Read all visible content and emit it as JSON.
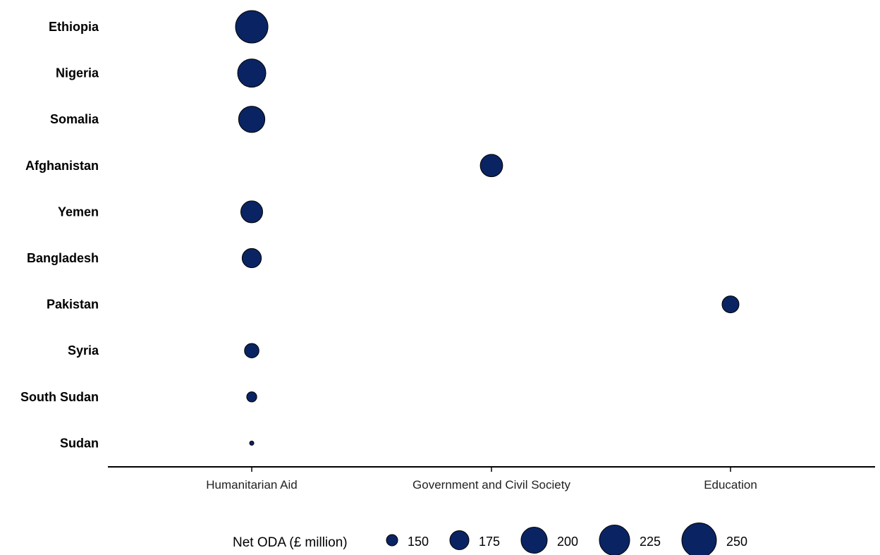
{
  "chart_data": {
    "type": "scatter",
    "title": "",
    "xlabel": "",
    "ylabel": "",
    "categories_x": [
      "Humanitarian Aid",
      "Government and Civil Society",
      "Education"
    ],
    "categories_y": [
      "Ethiopia",
      "Nigeria",
      "Somalia",
      "Afghanistan",
      "Yemen",
      "Bangladesh",
      "Pakistan",
      "Syria",
      "South Sudan",
      "Sudan"
    ],
    "points": [
      {
        "country": "Ethiopia",
        "sector": "Humanitarian Aid",
        "value": 260
      },
      {
        "country": "Nigeria",
        "sector": "Humanitarian Aid",
        "value": 236
      },
      {
        "country": "Somalia",
        "sector": "Humanitarian Aid",
        "value": 225
      },
      {
        "country": "Afghanistan",
        "sector": "Government and Civil Society",
        "value": 203
      },
      {
        "country": "Yemen",
        "sector": "Humanitarian Aid",
        "value": 200
      },
      {
        "country": "Bangladesh",
        "sector": "Humanitarian Aid",
        "value": 185
      },
      {
        "country": "Pakistan",
        "sector": "Education",
        "value": 172
      },
      {
        "country": "Syria",
        "sector": "Humanitarian Aid",
        "value": 158
      },
      {
        "country": "South Sudan",
        "sector": "Humanitarian Aid",
        "value": 133
      },
      {
        "country": "Sudan",
        "sector": "Humanitarian Aid",
        "value": 100
      }
    ],
    "size_legend": {
      "title": "Net ODA (£ million)",
      "values": [
        150,
        175,
        200,
        225,
        250
      ],
      "labels": [
        "150",
        "175",
        "200",
        "225",
        "250"
      ],
      "placement": "bottom"
    },
    "grid": false,
    "colors": {
      "point_fill": "#0a2463",
      "point_stroke": "#000000",
      "axis": "#000000"
    }
  }
}
